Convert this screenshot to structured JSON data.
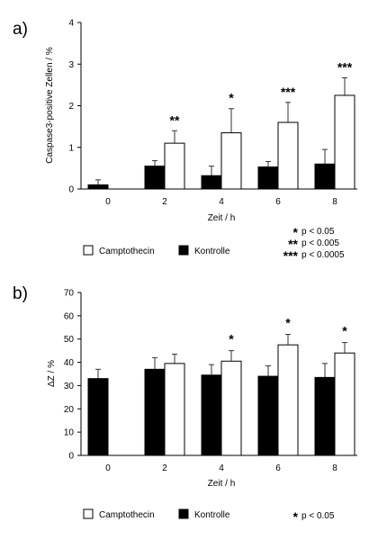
{
  "chart_data": [
    {
      "type": "bar",
      "panel_label": "a)",
      "xlabel": "Zeit  /  h",
      "ylabel": "Caspase3-positive Zellen  /  %",
      "ylim": [
        0,
        4
      ],
      "yticks": [
        0,
        1,
        2,
        3,
        4
      ],
      "categories": [
        "0",
        "2",
        "4",
        "6",
        "8"
      ],
      "series": [
        {
          "name": "Kontrolle",
          "color": "#000000",
          "values": [
            0.1,
            0.55,
            0.32,
            0.53,
            0.6
          ],
          "errors": [
            0.12,
            0.13,
            0.23,
            0.13,
            0.35
          ]
        },
        {
          "name": "Camptothecin",
          "color": "#ffffff",
          "values": [
            null,
            1.1,
            1.35,
            1.6,
            2.25
          ],
          "errors": [
            null,
            0.3,
            0.58,
            0.48,
            0.42
          ]
        }
      ],
      "annotations": [
        {
          "category": "2",
          "text": "**"
        },
        {
          "category": "4",
          "text": "*"
        },
        {
          "category": "6",
          "text": "***"
        },
        {
          "category": "8",
          "text": "***"
        }
      ],
      "significance_legend": [
        {
          "stars": "*",
          "text": "p < 0.05"
        },
        {
          "stars": "**",
          "text": "p < 0.005"
        },
        {
          "stars": "***",
          "text": "p < 0.0005"
        }
      ],
      "grid": false,
      "legend_position": "bottom"
    },
    {
      "type": "bar",
      "panel_label": "b)",
      "xlabel": "Zeit  /  h",
      "ylabel": "ΔZ  /  %",
      "ylim": [
        0,
        70
      ],
      "yticks": [
        0,
        10,
        20,
        30,
        40,
        50,
        60,
        70
      ],
      "categories": [
        "0",
        "2",
        "4",
        "6",
        "8"
      ],
      "series": [
        {
          "name": "Kontrolle",
          "color": "#000000",
          "values": [
            33,
            37,
            34.5,
            34,
            33.5
          ],
          "errors": [
            4,
            5,
            4.5,
            4.5,
            6
          ]
        },
        {
          "name": "Camptothecin",
          "color": "#ffffff",
          "values": [
            null,
            39.5,
            40.5,
            47.5,
            44
          ],
          "errors": [
            null,
            4,
            4.5,
            4.5,
            4.5
          ]
        }
      ],
      "annotations": [
        {
          "category": "4",
          "text": "*"
        },
        {
          "category": "6",
          "text": "*"
        },
        {
          "category": "8",
          "text": "*"
        }
      ],
      "significance_legend": [
        {
          "stars": "*",
          "text": "p < 0.05"
        }
      ],
      "grid": false,
      "legend_position": "bottom"
    }
  ]
}
